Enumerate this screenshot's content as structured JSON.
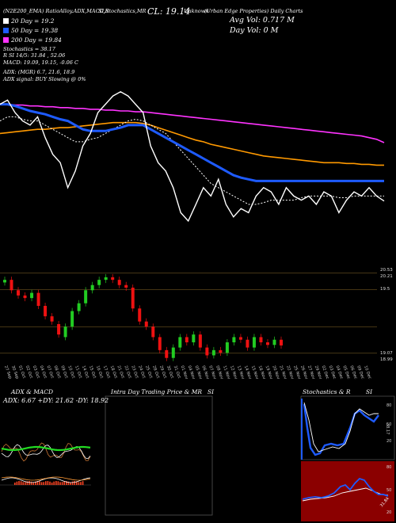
{
  "header": {
    "top_left": "(N2E200_EMA) RatioAlloy.ADX,MACD,R",
    "top_mid": "SI,Stochastics,MR",
    "cl": "CL: 19.14",
    "cl_extra": "Unknown",
    "company": "(Urban Edge Properties) Daily Charts",
    "avg_vol": "Avg Vol: 0.717 M",
    "day_vol": "Day Vol: 0   M"
  },
  "legend": [
    {
      "label": "20 Day = 19.2",
      "color": "#ffffff"
    },
    {
      "label": "50 Day = 19.38",
      "color": "#1e5bff"
    },
    {
      "label": "200 Day = 19.84",
      "color": "#ff33ff"
    }
  ],
  "stats": {
    "stochastics": "Stochastics = 38.17",
    "rsi": "R                SI 14/5: 31.84  ,  52.06",
    "macd": "MACD: 19.09,  19.15,  -0.06   C",
    "adx": "ADX:                         (MGR) 6.7,  21.6,  18.9",
    "adx_signal": "ADX  signal:                         BUY Slowing @ 0%"
  },
  "colors": {
    "close_line": "#ffffff",
    "ma20": "#ffffff",
    "ma50": "#1e5bff",
    "ma100": "#ff9900",
    "ma200": "#ff33ff",
    "up": "#22cc22",
    "down": "#ee1111",
    "rsi_bg": "#8b0000"
  },
  "chart_data": [
    {
      "type": "line",
      "name": "price_ma_panel",
      "x": [
        "27 Sep",
        "30 Sep",
        "01 Oct",
        "02 Oct",
        "03 Oct",
        "04 Oct",
        "07 Oct",
        "08 Oct",
        "09 Oct",
        "10 Oct",
        "11 Oct",
        "14 Oct",
        "15 Oct",
        "16 Oct",
        "17 Oct",
        "18 Oct",
        "21 Oct",
        "22 Oct",
        "23 Oct",
        "24 Oct",
        "25 Oct",
        "28 Oct",
        "29 Oct",
        "30 Oct",
        "31 Oct",
        "01 Nov",
        "04 Nov",
        "05 Nov",
        "06 Nov",
        "07 Nov",
        "08 Nov",
        "11 Nov",
        "12 Nov",
        "13 Nov",
        "14 Nov",
        "15 Nov",
        "18 Nov",
        "19 Nov",
        "20 Nov",
        "21 Nov",
        "22 Nov",
        "25 Nov",
        "26 Nov",
        "27 Nov",
        "29 Nov",
        "02 Dec",
        "03 Dec",
        "04 Dec",
        "05 Dec",
        "06 Dec",
        "09 Dec",
        "10 Dec"
      ],
      "series": [
        {
          "name": "Close",
          "values": [
            20.3,
            20.35,
            20.2,
            20.1,
            20.05,
            20.15,
            19.9,
            19.7,
            19.6,
            19.3,
            19.5,
            19.8,
            19.95,
            20.2,
            20.3,
            20.4,
            20.45,
            20.4,
            20.3,
            20.2,
            19.8,
            19.6,
            19.5,
            19.3,
            19.0,
            18.9,
            19.1,
            19.3,
            19.2,
            19.4,
            19.1,
            18.95,
            19.05,
            19.0,
            19.2,
            19.3,
            19.25,
            19.1,
            19.3,
            19.2,
            19.15,
            19.2,
            19.1,
            19.25,
            19.2,
            19.0,
            19.15,
            19.25,
            19.2,
            19.3,
            19.2,
            19.14
          ]
        },
        {
          "name": "20 Day",
          "values": [
            20.1,
            20.15,
            20.15,
            20.12,
            20.1,
            20.1,
            20.05,
            20.0,
            19.95,
            19.9,
            19.85,
            19.85,
            19.88,
            19.9,
            19.95,
            20.0,
            20.05,
            20.1,
            20.12,
            20.1,
            20.05,
            20.0,
            19.95,
            19.85,
            19.75,
            19.65,
            19.55,
            19.45,
            19.35,
            19.3,
            19.25,
            19.2,
            19.15,
            19.1,
            19.1,
            19.12,
            19.15,
            19.15,
            19.15,
            19.15,
            19.18,
            19.2,
            19.2,
            19.2,
            19.2,
            19.18,
            19.18,
            19.2,
            19.2,
            19.2,
            19.2,
            19.2
          ]
        },
        {
          "name": "50 Day",
          "values": [
            20.3,
            20.3,
            20.28,
            20.25,
            20.22,
            20.2,
            20.18,
            20.15,
            20.12,
            20.1,
            20.05,
            20.0,
            19.98,
            19.98,
            19.98,
            20.0,
            20.02,
            20.05,
            20.05,
            20.05,
            20.0,
            19.95,
            19.9,
            19.85,
            19.8,
            19.75,
            19.7,
            19.65,
            19.6,
            19.55,
            19.5,
            19.45,
            19.42,
            19.4,
            19.38,
            19.38,
            19.38,
            19.38,
            19.38,
            19.38,
            19.38,
            19.38,
            19.38,
            19.38,
            19.38,
            19.38,
            19.38,
            19.38,
            19.38,
            19.38,
            19.38,
            19.38
          ]
        },
        {
          "name": "100 Day",
          "values": [
            19.95,
            19.96,
            19.97,
            19.98,
            19.99,
            20.0,
            20.0,
            20.01,
            20.02,
            20.02,
            20.03,
            20.04,
            20.05,
            20.06,
            20.07,
            20.08,
            20.08,
            20.08,
            20.08,
            20.07,
            20.05,
            20.02,
            19.99,
            19.96,
            19.93,
            19.9,
            19.87,
            19.85,
            19.82,
            19.8,
            19.78,
            19.76,
            19.74,
            19.72,
            19.7,
            19.68,
            19.67,
            19.66,
            19.65,
            19.64,
            19.63,
            19.62,
            19.61,
            19.6,
            19.6,
            19.6,
            19.59,
            19.59,
            19.58,
            19.58,
            19.57,
            19.57
          ]
        },
        {
          "name": "200 Day",
          "values": [
            20.3,
            20.3,
            20.29,
            20.29,
            20.28,
            20.28,
            20.27,
            20.27,
            20.26,
            20.26,
            20.25,
            20.25,
            20.24,
            20.24,
            20.23,
            20.23,
            20.22,
            20.22,
            20.21,
            20.21,
            20.2,
            20.19,
            20.18,
            20.17,
            20.16,
            20.15,
            20.14,
            20.13,
            20.12,
            20.11,
            20.1,
            20.09,
            20.08,
            20.07,
            20.06,
            20.05,
            20.04,
            20.03,
            20.02,
            20.01,
            20.0,
            19.99,
            19.98,
            19.97,
            19.96,
            19.95,
            19.94,
            19.93,
            19.92,
            19.9,
            19.88,
            19.84
          ]
        }
      ]
    },
    {
      "type": "bar",
      "name": "candles",
      "price_labels": [
        "20.53",
        "20.21",
        "19.5",
        "19.07",
        "18.99"
      ],
      "opens": [
        20.35,
        20.4,
        20.2,
        20.1,
        20.05,
        20.15,
        19.9,
        19.7,
        19.55,
        19.3,
        19.5,
        19.8,
        19.95,
        20.2,
        20.3,
        20.4,
        20.45,
        20.4,
        20.3,
        20.25,
        19.85,
        19.6,
        19.5,
        19.3,
        19.05,
        18.9,
        19.1,
        19.3,
        19.2,
        19.35,
        19.1,
        18.95,
        19.05,
        19.0,
        19.2,
        19.3,
        19.25,
        19.1,
        19.3,
        19.2,
        19.15,
        19.25
      ],
      "closes": [
        20.4,
        20.2,
        20.1,
        20.05,
        20.15,
        19.9,
        19.7,
        19.6,
        19.35,
        19.5,
        19.8,
        19.95,
        20.2,
        20.3,
        20.4,
        20.45,
        20.4,
        20.3,
        20.25,
        19.85,
        19.6,
        19.5,
        19.3,
        19.05,
        18.9,
        19.1,
        19.3,
        19.2,
        19.35,
        19.1,
        18.95,
        19.05,
        19.0,
        19.2,
        19.3,
        19.25,
        19.1,
        19.3,
        19.2,
        19.15,
        19.25,
        19.14
      ]
    }
  ],
  "panels": {
    "adx_title": "ADX  & MACD",
    "adx_values": "ADX: 6.67  +DY: 21.62  -DY: 18.92",
    "intraday_title": "Intra  Day Trading Price  & MR",
    "intraday_si": "SI",
    "stoch_title": "Stochastics & R",
    "stoch_si": "SI",
    "stoch_ticks": [
      "80",
      "50",
      "20"
    ],
    "stoch_value": "38.17",
    "rsi_ticks": [
      "80",
      "50",
      "20"
    ],
    "rsi_value": "31.84"
  }
}
